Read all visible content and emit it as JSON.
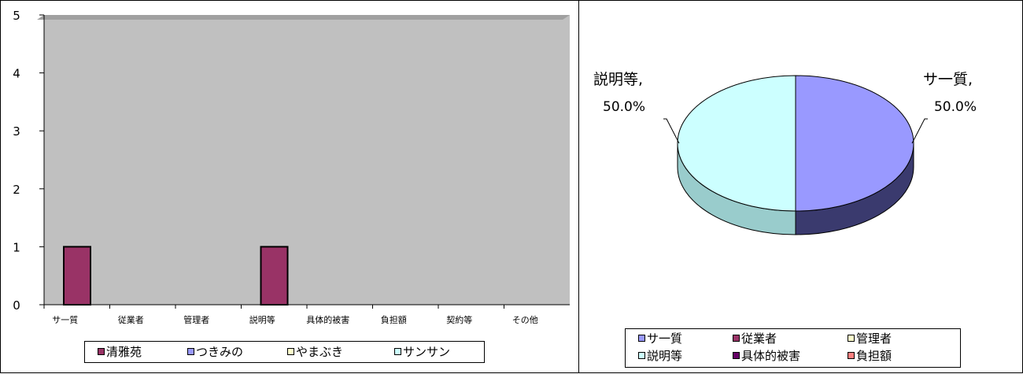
{
  "chart_data": [
    {
      "type": "bar",
      "categories": [
        "サ一質",
        "従業者",
        "管理者",
        "説明等",
        "具体的被害",
        "負担額",
        "契約等",
        "その他"
      ],
      "series": [
        {
          "name": "清雅苑",
          "values": [
            1,
            0,
            0,
            1,
            0,
            0,
            0,
            0
          ],
          "color": "#993366"
        },
        {
          "name": "つきみの",
          "values": [
            0,
            0,
            0,
            0,
            0,
            0,
            0,
            0
          ],
          "color": "#9999ff"
        },
        {
          "name": "やまぶき",
          "values": [
            0,
            0,
            0,
            0,
            0,
            0,
            0,
            0
          ],
          "color": "#ffffcc"
        },
        {
          "name": "サンサン",
          "values": [
            0,
            0,
            0,
            0,
            0,
            0,
            0,
            0
          ],
          "color": "#ccffff"
        }
      ],
      "ylim": [
        0,
        5
      ],
      "yticks": [
        "0",
        "1",
        "2",
        "3",
        "4",
        "5"
      ],
      "plot_background": "#c0c0c0",
      "legend_position": "bottom",
      "grid": false
    },
    {
      "type": "pie",
      "slices": [
        {
          "label": "サ一質",
          "value": 50.0,
          "display": "50.0%",
          "color": "#9999ff"
        },
        {
          "label": "説明等",
          "value": 50.0,
          "display": "50.0%",
          "color": "#ccffff"
        }
      ],
      "data_labels": [
        {
          "label": "サ一質,",
          "pct": "50.0%"
        },
        {
          "label": "説明等,",
          "pct": "50.0%"
        }
      ],
      "legend": [
        {
          "label": "サ一質",
          "color": "#9999ff"
        },
        {
          "label": "従業者",
          "color": "#993366"
        },
        {
          "label": "管理者",
          "color": "#ffffcc"
        },
        {
          "label": "説明等",
          "color": "#ccffff"
        },
        {
          "label": "具体的被害",
          "color": "#660066"
        },
        {
          "label": "負担額",
          "color": "#ff8080"
        }
      ],
      "legend_position": "bottom",
      "style": "3d"
    }
  ]
}
